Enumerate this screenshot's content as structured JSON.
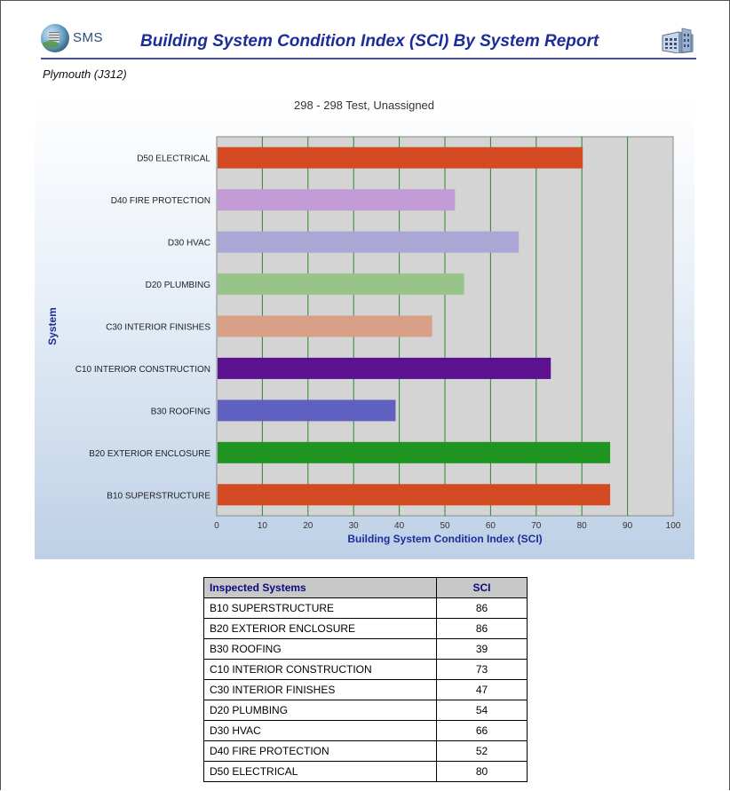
{
  "header": {
    "logo_text": "SMS",
    "title": "Building System Condition Index (SCI) By System Report"
  },
  "sub_title": "Plymouth (J312)",
  "chart_data": {
    "type": "bar",
    "orientation": "horizontal",
    "title": "298 - 298 Test, Unassigned",
    "xlabel": "Building System Condition Index (SCI)",
    "ylabel": "System",
    "xlim": [
      0,
      100
    ],
    "xticks": [
      "0",
      "10",
      "20",
      "30",
      "40",
      "50",
      "60",
      "70",
      "80",
      "90",
      "100"
    ],
    "grid": true,
    "categories": [
      "D50 ELECTRICAL",
      "D40 FIRE PROTECTION",
      "D30 HVAC",
      "D20 PLUMBING",
      "C30 INTERIOR FINISHES",
      "C10 INTERIOR CONSTRUCTION",
      "B30 ROOFING",
      "B20 EXTERIOR ENCLOSURE",
      "B10 SUPERSTRUCTURE"
    ],
    "values": [
      80,
      52,
      66,
      54,
      47,
      73,
      39,
      86,
      86
    ],
    "colors": [
      "#d44a22",
      "#c39bd6",
      "#aaa6d6",
      "#98c48a",
      "#d9a088",
      "#5c1290",
      "#6060c0",
      "#1f9420",
      "#d44a22"
    ],
    "background": "#d4d4d4",
    "gridline_color": "#2a8a2a"
  },
  "table": {
    "headers": [
      "Inspected Systems",
      "SCI"
    ],
    "rows": [
      [
        "B10 SUPERSTRUCTURE",
        "86"
      ],
      [
        "B20 EXTERIOR ENCLOSURE",
        "86"
      ],
      [
        "B30 ROOFING",
        "39"
      ],
      [
        "C10 INTERIOR CONSTRUCTION",
        "73"
      ],
      [
        "C30 INTERIOR FINISHES",
        "47"
      ],
      [
        "D20 PLUMBING",
        "54"
      ],
      [
        "D30 HVAC",
        "66"
      ],
      [
        "D40 FIRE PROTECTION",
        "52"
      ],
      [
        "D50 ELECTRICAL",
        "80"
      ]
    ]
  }
}
